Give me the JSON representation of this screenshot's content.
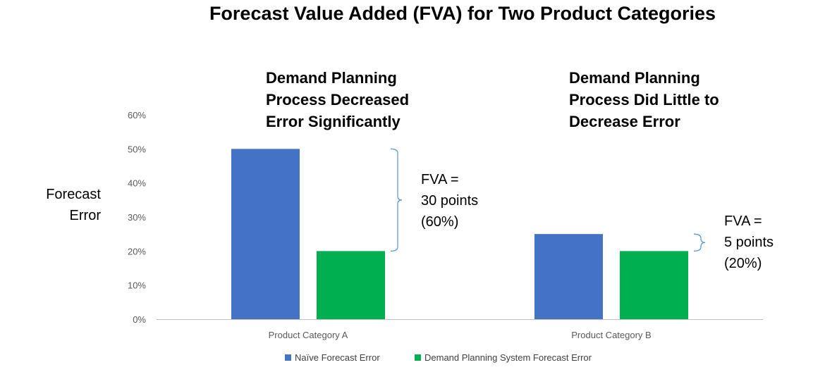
{
  "chart_data": {
    "type": "bar",
    "title": "Forecast Value Added (FVA) for Two Product Categories",
    "ylabel_lines": [
      "Forecast",
      "Error"
    ],
    "xlabel": "",
    "ylim": [
      0,
      60
    ],
    "yticks": [
      0,
      10,
      20,
      30,
      40,
      50,
      60
    ],
    "ytick_labels": [
      "0%",
      "10%",
      "20%",
      "30%",
      "40%",
      "50%",
      "60%"
    ],
    "categories": [
      "Product Category A",
      "Product Category B"
    ],
    "series": [
      {
        "name": "Naïve Forecast Error",
        "color": "#4472C4",
        "values": [
          50,
          25
        ]
      },
      {
        "name": "Demand Planning System Forecast Error",
        "color": "#00B050",
        "values": [
          20,
          20
        ]
      }
    ],
    "grid": false,
    "legend_position": "bottom",
    "annotations": [
      {
        "heading_lines": [
          "Demand Planning",
          "Process Decreased",
          "Error Significantly"
        ],
        "fva_lines": [
          "FVA =",
          "30 points",
          "(60%)"
        ],
        "bracket_from": 20,
        "bracket_to": 50
      },
      {
        "heading_lines": [
          "Demand Planning",
          "Process Did Little to",
          "Decrease Error"
        ],
        "fva_lines": [
          "FVA =",
          "5 points",
          "(20%)"
        ],
        "bracket_from": 20,
        "bracket_to": 25
      }
    ],
    "bracket_color": "#5B9BD5",
    "axis_color": "#BFBFBF"
  }
}
